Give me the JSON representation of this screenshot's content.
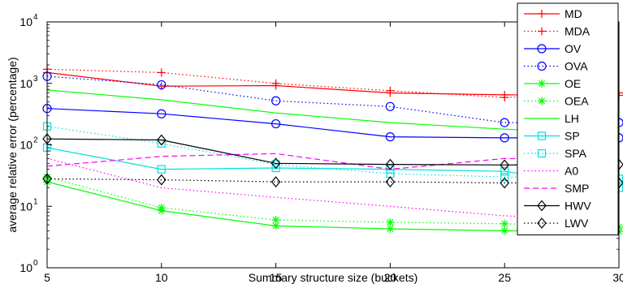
{
  "chart_data": {
    "type": "line",
    "xlabel": "Summary structure size (buckets)",
    "ylabel": "average relative error (percentage)",
    "x": [
      5,
      10,
      15,
      20,
      25,
      30
    ],
    "xlim": [
      5,
      30
    ],
    "ylim": [
      1,
      10000
    ],
    "y_scale": "log",
    "x_ticks": [
      "5",
      "10",
      "15",
      "20",
      "25",
      "30"
    ],
    "y_ticks": [
      {
        "value": 1,
        "label": "10",
        "exp": "0"
      },
      {
        "value": 10,
        "label": "10",
        "exp": "1"
      },
      {
        "value": 100,
        "label": "10",
        "exp": "2"
      },
      {
        "value": 1000,
        "label": "10",
        "exp": "3"
      },
      {
        "value": 10000,
        "label": "10",
        "exp": "4"
      }
    ],
    "grid": false,
    "legend_position": "top-right",
    "series": [
      {
        "name": "MD",
        "color": "#ff0000",
        "dash": "solid",
        "marker": "plus",
        "values": [
          1500,
          900,
          920,
          700,
          650,
          640
        ]
      },
      {
        "name": "MDA",
        "color": "#ff0000",
        "dash": "dotted",
        "marker": "plus",
        "values": [
          1700,
          1500,
          1000,
          760,
          590,
          700
        ]
      },
      {
        "name": "OV",
        "color": "#0000ff",
        "dash": "solid",
        "marker": "circle",
        "values": [
          390,
          320,
          220,
          135,
          130,
          130
        ]
      },
      {
        "name": "OVA",
        "color": "#0000ff",
        "dash": "dotted",
        "marker": "circle",
        "values": [
          1300,
          950,
          520,
          420,
          230,
          230
        ]
      },
      {
        "name": "OE",
        "color": "#00ff00",
        "dash": "solid",
        "marker": "asterisk",
        "values": [
          25,
          8.5,
          4.8,
          4.3,
          4,
          3.9
        ]
      },
      {
        "name": "OEA",
        "color": "#00ff00",
        "dash": "dotted",
        "marker": "asterisk",
        "values": [
          30,
          9.5,
          6,
          5.5,
          5.2,
          4.6
        ]
      },
      {
        "name": "LH",
        "color": "#00ff00",
        "dash": "solid",
        "marker": "none",
        "values": [
          780,
          540,
          330,
          230,
          180,
          150
        ]
      },
      {
        "name": "SP",
        "color": "#00e0e0",
        "dash": "solid",
        "marker": "square",
        "values": [
          90,
          40,
          42,
          40,
          37,
          20
        ]
      },
      {
        "name": "SPA",
        "color": "#00e0e0",
        "dash": "dotted",
        "marker": "square",
        "values": [
          200,
          105,
          48,
          34,
          30,
          28
        ]
      },
      {
        "name": "A0",
        "color": "#ff00ff",
        "dash": "dotted",
        "marker": "none",
        "values": [
          60,
          20,
          14,
          10,
          7,
          6
        ]
      },
      {
        "name": "SMP",
        "color": "#ff00ff",
        "dash": "dashed",
        "marker": "none",
        "values": [
          45,
          65,
          72,
          40,
          60,
          55
        ]
      },
      {
        "name": "HWV",
        "color": "#000000",
        "dash": "solid",
        "marker": "diamond",
        "values": [
          125,
          120,
          50,
          48,
          47,
          48
        ]
      },
      {
        "name": "LWV",
        "color": "#000000",
        "dash": "dotted",
        "marker": "diamond",
        "values": [
          28,
          27,
          25,
          25,
          24,
          24
        ]
      }
    ]
  }
}
